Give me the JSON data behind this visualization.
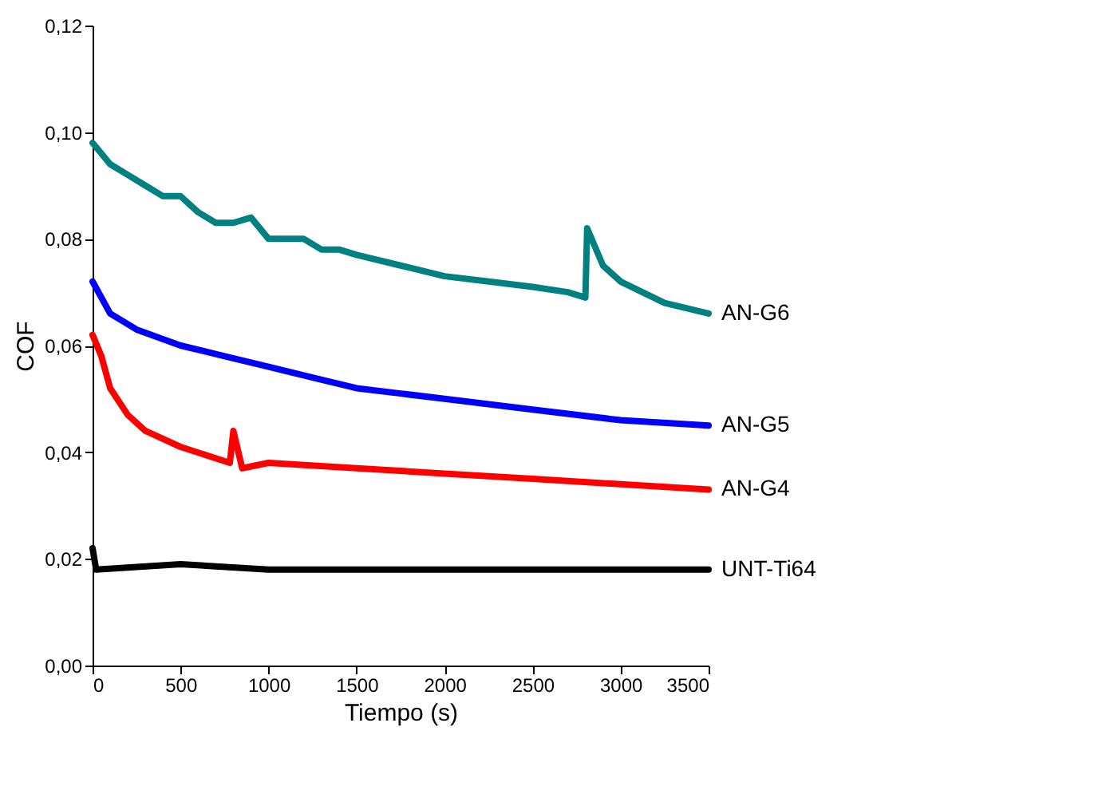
{
  "chart_data": {
    "type": "line",
    "xlabel": "Tiempo (s)",
    "ylabel": "COF",
    "legend": false,
    "grid": false,
    "line_style": "solid",
    "marker": "none",
    "xlim": [
      0,
      3500
    ],
    "xticks": [
      0,
      500,
      1000,
      1500,
      2000,
      2500,
      3000,
      3500
    ],
    "ylim": [
      0,
      0.12
    ],
    "yticks": [
      {
        "value": 0,
        "label": "0,00"
      },
      {
        "value": 0.02,
        "label": "0,02"
      },
      {
        "value": 0.04,
        "label": "0,04"
      },
      {
        "value": 0.06,
        "label": "0,06"
      },
      {
        "value": 0.08,
        "label": "0,08"
      },
      {
        "value": 0.1,
        "label": "0,10"
      },
      {
        "value": 0.12,
        "label": "0,12"
      }
    ],
    "series": [
      {
        "name": "AN-G6",
        "color": "#008080",
        "x": [
          0,
          100,
          200,
          300,
          400,
          500,
          600,
          700,
          800,
          900,
          1000,
          1100,
          1200,
          1300,
          1400,
          1500,
          1750,
          2000,
          2250,
          2500,
          2700,
          2800,
          2810,
          2900,
          3000,
          3250,
          3500
        ],
        "values": [
          0.098,
          0.094,
          0.092,
          0.09,
          0.088,
          0.088,
          0.085,
          0.083,
          0.083,
          0.084,
          0.08,
          0.08,
          0.08,
          0.078,
          0.078,
          0.077,
          0.075,
          0.073,
          0.072,
          0.071,
          0.07,
          0.069,
          0.082,
          0.075,
          0.072,
          0.068,
          0.066
        ]
      },
      {
        "name": "AN-G5",
        "color": "#0000ff",
        "x": [
          0,
          100,
          250,
          500,
          750,
          1000,
          1250,
          1500,
          1750,
          2000,
          2500,
          3000,
          3500
        ],
        "values": [
          0.072,
          0.066,
          0.063,
          0.06,
          0.058,
          0.056,
          0.054,
          0.052,
          0.051,
          0.05,
          0.048,
          0.046,
          0.045
        ]
      },
      {
        "name": "AN-G4",
        "color": "#ff0000",
        "x": [
          0,
          50,
          100,
          200,
          300,
          500,
          780,
          800,
          850,
          1000,
          1500,
          2000,
          2500,
          3000,
          3500
        ],
        "values": [
          0.062,
          0.058,
          0.052,
          0.047,
          0.044,
          0.041,
          0.038,
          0.044,
          0.037,
          0.038,
          0.037,
          0.036,
          0.035,
          0.034,
          0.033
        ]
      },
      {
        "name": "UNT-Ti64",
        "color": "#000000",
        "x": [
          0,
          20,
          500,
          1000,
          1500,
          2000,
          2500,
          3000,
          3500
        ],
        "values": [
          0.022,
          0.018,
          0.019,
          0.018,
          0.018,
          0.018,
          0.018,
          0.018,
          0.018
        ]
      }
    ]
  }
}
